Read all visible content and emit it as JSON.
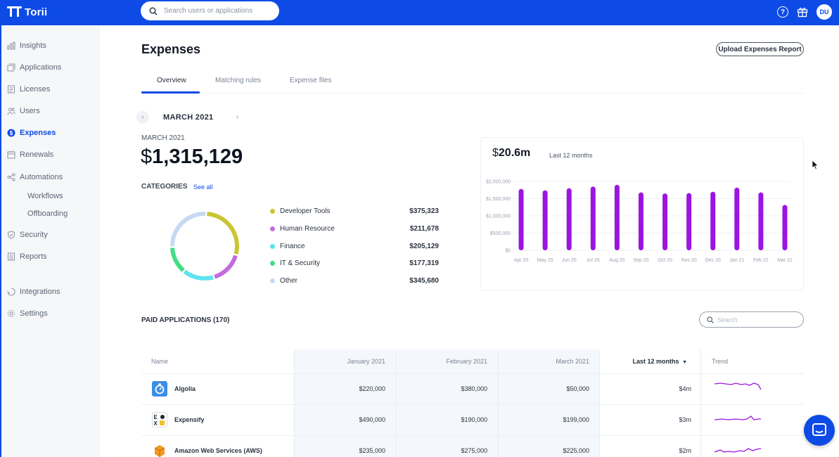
{
  "app": {
    "name": "Torii"
  },
  "topbar": {
    "search_placeholder": "Search users or applications",
    "avatar_initials": "DU",
    "help_glyph": "?"
  },
  "sidebar": {
    "items": [
      {
        "label": "Insights",
        "icon": "bar-chart-icon"
      },
      {
        "label": "Applications",
        "icon": "applications-icon"
      },
      {
        "label": "Licenses",
        "icon": "licenses-icon"
      },
      {
        "label": "Users",
        "icon": "users-icon"
      },
      {
        "label": "Expenses",
        "icon": "dollar-icon",
        "active": true
      },
      {
        "label": "Renewals",
        "icon": "calendar-icon"
      },
      {
        "label": "Automations",
        "icon": "automations-icon"
      },
      {
        "label": "Workflows"
      },
      {
        "label": "Offboarding"
      },
      {
        "label": "Security",
        "icon": "shield-icon"
      },
      {
        "label": "Reports",
        "icon": "reports-icon"
      },
      {
        "label": "Integrations",
        "icon": "integrations-icon"
      },
      {
        "label": "Settings",
        "icon": "gear-icon"
      }
    ]
  },
  "page": {
    "title": "Expenses",
    "upload_button": "Upload Expenses Report",
    "tabs": [
      "Overview",
      "Matching rules",
      "Expense files"
    ],
    "month": "MARCH 2021",
    "period_label": "MARCH 2021",
    "total_currency": "$",
    "total_value": "1,315,129",
    "categories_label": "CATEGORIES",
    "see_all": "See all"
  },
  "categories": [
    {
      "name": "Developer Tools",
      "amount": "$375,323",
      "value": 375323,
      "color": "#c9c534"
    },
    {
      "name": "Human Resource",
      "amount": "$211,678",
      "value": 211678,
      "color": "#c46be0"
    },
    {
      "name": "Finance",
      "amount": "$205,129",
      "value": 205129,
      "color": "#5ee3ef"
    },
    {
      "name": "IT & Security",
      "amount": "$177,319",
      "value": 177319,
      "color": "#43dd84"
    },
    {
      "name": "Other",
      "amount": "$345,680",
      "value": 345680,
      "color": "#c7d9f2"
    }
  ],
  "summary_card": {
    "currency": "$",
    "amount": "20.6m",
    "subtitle": "Last 12 months"
  },
  "chart_data": {
    "type": "bar",
    "categories": [
      "Apr 20",
      "May 20",
      "Jun 20",
      "Jul 20",
      "Aug 20",
      "Sep 20",
      "Oct 20",
      "Nov 20",
      "Dec 20",
      "Jan 21",
      "Feb 21",
      "Mar 21"
    ],
    "values": [
      1780000,
      1740000,
      1800000,
      1850000,
      1900000,
      1680000,
      1650000,
      1660000,
      1700000,
      1820000,
      1680000,
      1315129
    ],
    "ylim": [
      0,
      2000000
    ],
    "yticks": [
      "$0",
      "$500,000",
      "$1,000,000",
      "$1,500,000",
      "$2,000,000"
    ],
    "ytick_values": [
      0,
      500000,
      1000000,
      1500000,
      2000000
    ],
    "color": "#9b15e0",
    "grid": true
  },
  "paid_apps": {
    "title": "PAID APPLICATIONS (170)",
    "search_placeholder": "Search",
    "columns": [
      "Name",
      "January 2021",
      "February 2021",
      "March 2021",
      "Last 12 months",
      "Trend"
    ],
    "rows": [
      {
        "name": "Algolia",
        "icon": "algolia-icon",
        "jan": "$220,000",
        "feb": "$380,000",
        "mar": "$50,000",
        "last12": "$4m"
      },
      {
        "name": "Expensify",
        "icon": "expensify-icon",
        "jan": "$490,000",
        "feb": "$190,000",
        "mar": "$199,000",
        "last12": "$3m"
      },
      {
        "name": "Amazon Web Services (AWS)",
        "icon": "aws-icon",
        "jan": "$235,000",
        "feb": "$275,000",
        "mar": "$225,000",
        "last12": "$2m"
      }
    ]
  }
}
